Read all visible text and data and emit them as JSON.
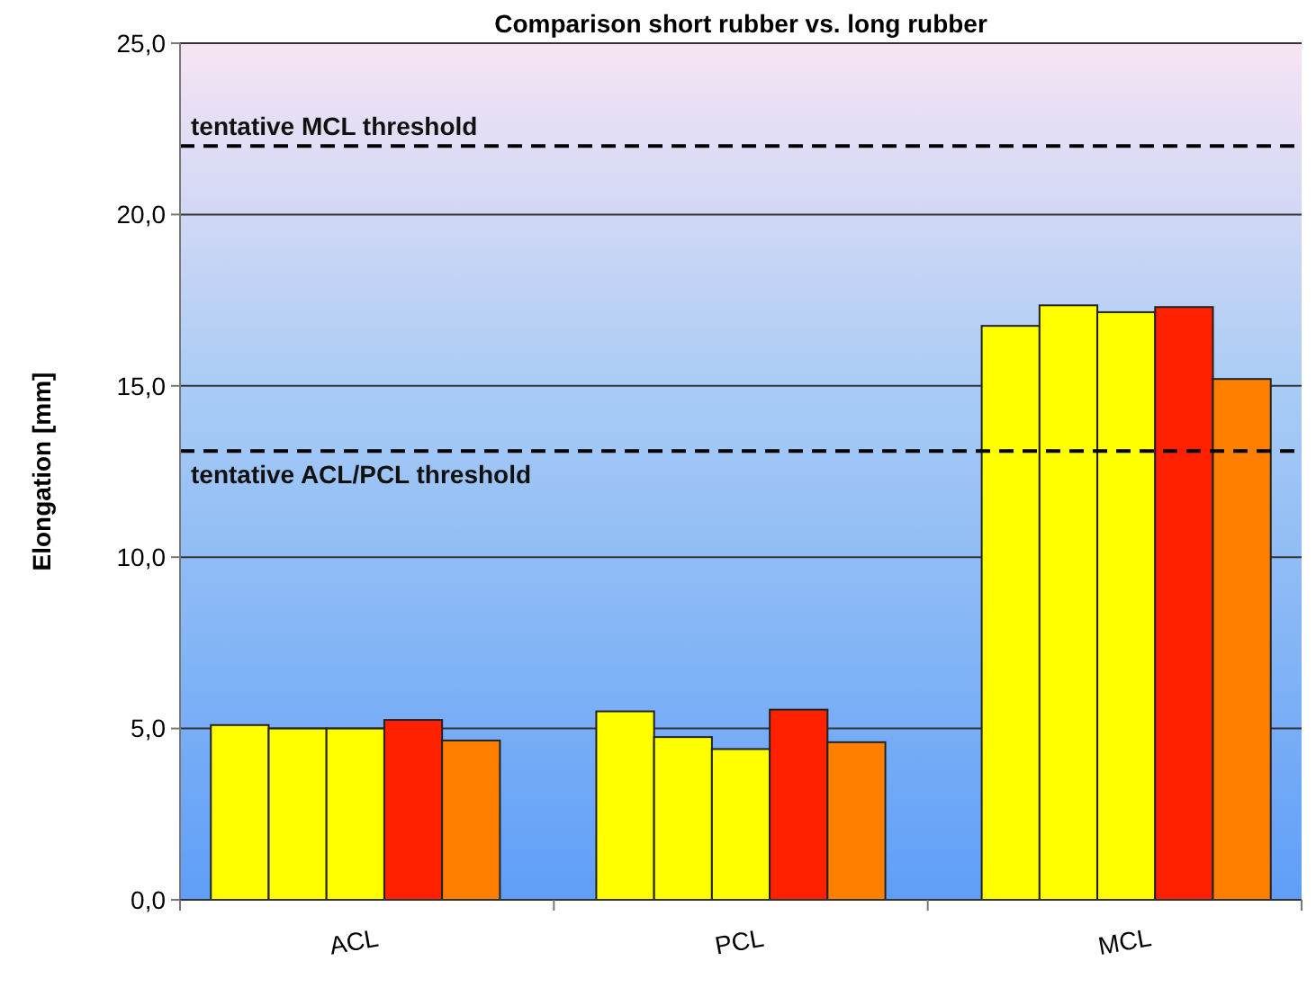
{
  "chart_data": {
    "type": "bar",
    "title": "Comparison short rubber vs. long rubber",
    "ylabel": "Elongation [mm]",
    "categories": [
      "ACL",
      "PCL",
      "MCL"
    ],
    "series": [
      {
        "color": "#ffff00",
        "values": [
          5.1,
          5.5,
          16.75
        ]
      },
      {
        "color": "#ffff00",
        "values": [
          5.0,
          4.75,
          17.35
        ]
      },
      {
        "color": "#ffff00",
        "values": [
          5.0,
          4.4,
          17.15
        ]
      },
      {
        "color": "#ff2000",
        "values": [
          5.25,
          5.55,
          17.3
        ]
      },
      {
        "color": "#ff8000",
        "values": [
          4.65,
          4.6,
          15.2
        ]
      }
    ],
    "ylim": [
      0,
      25
    ],
    "yticks": [
      {
        "value": 0,
        "label": "0,0"
      },
      {
        "value": 5,
        "label": "5,0"
      },
      {
        "value": 10,
        "label": "10,0"
      },
      {
        "value": 15,
        "label": "15,0"
      },
      {
        "value": 20,
        "label": "20,0"
      },
      {
        "value": 25,
        "label": "25,0"
      }
    ],
    "grid": "y",
    "ref_lines": [
      {
        "axis": "y",
        "value": 22,
        "label": "tentative MCL threshold",
        "color": "#000000",
        "line_style": "dashed"
      },
      {
        "axis": "y",
        "value": 13.1,
        "label": "tentative ACL/PCL threshold",
        "color": "#000000",
        "line_style": "dashed"
      }
    ]
  }
}
